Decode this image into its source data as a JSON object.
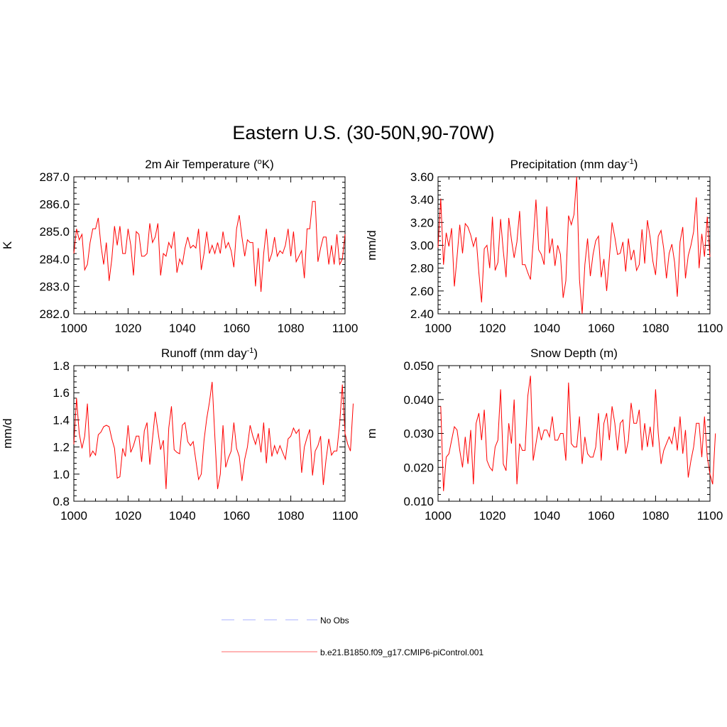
{
  "title": "Eastern U.S. (30-50N,90-70W)",
  "legend": {
    "items": [
      {
        "label": "No Obs",
        "color": "#aab0ff",
        "style": "dashed"
      },
      {
        "label": "b.e21.B1850.f09_g17.CMIP6-piControl.001",
        "color": "#ff6a6a",
        "style": "solid"
      }
    ]
  },
  "chart_data": [
    {
      "type": "line",
      "title": "2m Air Temperature (oK)",
      "title_main": "2m Air Temperature (",
      "title_sup": "o",
      "title_end": "K)",
      "ylabel": "K",
      "xlim": [
        1000,
        1100
      ],
      "ylim": [
        282.0,
        287.0
      ],
      "xticks": [
        1000,
        1020,
        1040,
        1060,
        1080,
        1100
      ],
      "xtick_labels": [
        "1000",
        "1020",
        "1040",
        "1060",
        "1080",
        "1100"
      ],
      "yticks": [
        282.0,
        283.0,
        284.0,
        285.0,
        286.0,
        287.0
      ],
      "ytick_labels": [
        "282.0",
        "283.0",
        "284.0",
        "285.0",
        "286.0",
        "287.0"
      ],
      "x_start": 1000,
      "x_step": 1,
      "series": [
        {
          "name": "b.e21.B1850.f09_g17.CMIP6-piControl.001",
          "color": "#ff0000",
          "values": [
            284.2,
            285.1,
            284.7,
            284.9,
            283.6,
            283.8,
            284.6,
            285.1,
            285.1,
            285.5,
            284.5,
            283.8,
            284.6,
            283.2,
            284.0,
            285.2,
            284.5,
            285.2,
            284.2,
            284.2,
            285.1,
            284.5,
            283.4,
            285.0,
            284.9,
            284.1,
            284.1,
            284.2,
            285.3,
            284.6,
            284.8,
            285.3,
            283.4,
            284.2,
            284.1,
            284.6,
            284.4,
            285.0,
            283.5,
            284.0,
            283.8,
            284.4,
            284.8,
            284.4,
            284.5,
            284.4,
            285.1,
            283.6,
            284.2,
            285.0,
            284.2,
            284.5,
            284.2,
            284.6,
            284.2,
            285.0,
            284.4,
            284.6,
            284.3,
            283.7,
            285.1,
            285.6,
            284.8,
            284.1,
            284.7,
            284.6,
            284.6,
            283.0,
            284.4,
            282.8,
            284.2,
            285.1,
            283.9,
            284.2,
            284.8,
            284.1,
            284.3,
            284.2,
            284.5,
            285.1,
            284.1,
            285.0,
            283.9,
            284.1,
            284.3,
            283.3,
            285.1,
            285.1,
            286.1,
            286.1,
            283.9,
            284.4,
            284.8,
            284.8,
            283.8,
            284.5,
            283.8,
            284.9,
            283.8,
            284.0,
            284.9
          ]
        }
      ]
    },
    {
      "type": "line",
      "title": "Precipitation (mm day-1)",
      "title_main": "Precipitation (mm day",
      "title_sup": "-1",
      "title_end": ")",
      "ylabel": "mm/d",
      "xlim": [
        1000,
        1100
      ],
      "ylim": [
        2.4,
        3.6
      ],
      "xticks": [
        1000,
        1020,
        1040,
        1060,
        1080,
        1100
      ],
      "xtick_labels": [
        "1000",
        "1020",
        "1040",
        "1060",
        "1080",
        "1100"
      ],
      "yticks": [
        2.4,
        2.6,
        2.8,
        3.0,
        3.2,
        3.4,
        3.6
      ],
      "ytick_labels": [
        "2.40",
        "2.60",
        "2.80",
        "3.00",
        "3.20",
        "3.40",
        "3.60"
      ],
      "x_start": 1000,
      "x_step": 1,
      "series": [
        {
          "name": "b.e21.B1850.f09_g17.CMIP6-piControl.001",
          "color": "#ff0000",
          "values": [
            2.98,
            3.41,
            2.83,
            3.11,
            2.99,
            3.15,
            2.64,
            2.9,
            3.18,
            2.93,
            3.19,
            3.16,
            3.09,
            2.99,
            3.07,
            2.76,
            2.5,
            2.97,
            3.0,
            2.8,
            3.25,
            2.78,
            2.85,
            3.23,
            2.95,
            2.72,
            3.24,
            3.05,
            2.89,
            3.03,
            3.3,
            2.83,
            2.83,
            2.76,
            2.7,
            3.03,
            3.4,
            2.96,
            2.92,
            2.83,
            3.34,
            2.93,
            3.06,
            2.82,
            3.0,
            2.92,
            2.54,
            2.69,
            3.26,
            3.18,
            3.27,
            3.6,
            2.7,
            2.4,
            2.83,
            3.06,
            2.73,
            2.92,
            3.04,
            3.08,
            2.72,
            2.88,
            2.6,
            2.89,
            3.2,
            3.07,
            2.92,
            2.93,
            3.03,
            2.77,
            3.06,
            2.87,
            2.96,
            2.78,
            2.83,
            3.14,
            2.84,
            3.22,
            3.07,
            2.86,
            2.74,
            3.08,
            3.13,
            2.97,
            2.71,
            2.93,
            3.01,
            2.85,
            2.55,
            3.03,
            3.16,
            2.71,
            2.91,
            3.0,
            3.12,
            3.42,
            2.8,
            3.1,
            2.9,
            3.25,
            2.9
          ]
        }
      ]
    },
    {
      "type": "line",
      "title": "Runoff (mm day-1)",
      "title_main": "Runoff (mm day",
      "title_sup": "-1",
      "title_end": ")",
      "ylabel": "mm/d",
      "xlim": [
        1000,
        1100
      ],
      "ylim": [
        0.8,
        1.8
      ],
      "xticks": [
        1000,
        1020,
        1040,
        1060,
        1080,
        1100
      ],
      "xtick_labels": [
        "1000",
        "1020",
        "1040",
        "1060",
        "1080",
        "1100"
      ],
      "yticks": [
        0.8,
        1.0,
        1.2,
        1.4,
        1.6,
        1.8
      ],
      "ytick_labels": [
        "0.8",
        "1.0",
        "1.2",
        "1.4",
        "1.6",
        "1.8"
      ],
      "x_start": 1000,
      "x_step": 1,
      "series": [
        {
          "name": "b.e21.B1850.f09_g17.CMIP6-piControl.001",
          "color": "#ff0000",
          "values": [
            1.22,
            1.56,
            1.3,
            1.19,
            1.28,
            1.52,
            1.13,
            1.17,
            1.14,
            1.29,
            1.31,
            1.35,
            1.36,
            1.35,
            1.26,
            1.19,
            0.97,
            0.98,
            1.19,
            1.13,
            1.36,
            1.16,
            1.21,
            1.28,
            1.28,
            1.09,
            1.32,
            1.38,
            1.07,
            1.26,
            1.46,
            1.32,
            1.18,
            1.25,
            0.89,
            1.34,
            1.5,
            1.18,
            1.16,
            1.15,
            1.36,
            1.38,
            1.24,
            1.21,
            1.24,
            1.1,
            0.96,
            1.0,
            1.25,
            1.41,
            1.53,
            1.68,
            1.28,
            0.89,
            1.0,
            1.36,
            1.05,
            1.12,
            1.17,
            1.38,
            1.19,
            1.13,
            0.95,
            1.11,
            1.2,
            1.36,
            1.28,
            1.22,
            1.3,
            1.16,
            1.38,
            1.08,
            1.34,
            1.13,
            1.21,
            1.15,
            1.21,
            1.16,
            1.11,
            1.26,
            1.28,
            1.34,
            1.3,
            1.33,
            1.01,
            1.2,
            1.27,
            1.33,
            0.99,
            1.17,
            1.21,
            1.28,
            0.92,
            1.11,
            1.26,
            1.14,
            1.17,
            1.17,
            1.37,
            1.66,
            1.3,
            1.22,
            1.17,
            1.52
          ]
        }
      ]
    },
    {
      "type": "line",
      "title": "Snow Depth (m)",
      "title_main": "Snow Depth (m)",
      "title_sup": "",
      "title_end": "",
      "ylabel": "m",
      "xlim": [
        1000,
        1100
      ],
      "ylim": [
        0.01,
        0.05
      ],
      "xticks": [
        1000,
        1020,
        1040,
        1060,
        1080,
        1100
      ],
      "xtick_labels": [
        "1000",
        "1020",
        "1040",
        "1060",
        "1080",
        "1100"
      ],
      "yticks": [
        0.01,
        0.02,
        0.03,
        0.04,
        0.05
      ],
      "ytick_labels": [
        "0.010",
        "0.020",
        "0.030",
        "0.040",
        "0.050"
      ],
      "x_start": 1001,
      "x_step": 1,
      "series": [
        {
          "name": "b.e21.B1850.f09_g17.CMIP6-piControl.001",
          "color": "#ff0000",
          "values": [
            0.038,
            0.013,
            0.023,
            0.024,
            0.028,
            0.032,
            0.031,
            0.025,
            0.02,
            0.029,
            0.021,
            0.031,
            0.015,
            0.033,
            0.036,
            0.028,
            0.037,
            0.022,
            0.02,
            0.019,
            0.026,
            0.028,
            0.043,
            0.021,
            0.019,
            0.033,
            0.027,
            0.04,
            0.015,
            0.027,
            0.025,
            0.025,
            0.041,
            0.047,
            0.022,
            0.027,
            0.032,
            0.028,
            0.031,
            0.031,
            0.029,
            0.035,
            0.028,
            0.028,
            0.03,
            0.03,
            0.022,
            0.045,
            0.027,
            0.026,
            0.026,
            0.035,
            0.021,
            0.029,
            0.024,
            0.023,
            0.023,
            0.026,
            0.036,
            0.022,
            0.033,
            0.036,
            0.028,
            0.038,
            0.033,
            0.025,
            0.033,
            0.034,
            0.024,
            0.028,
            0.039,
            0.033,
            0.033,
            0.037,
            0.025,
            0.033,
            0.026,
            0.032,
            0.026,
            0.043,
            0.03,
            0.021,
            0.025,
            0.027,
            0.029,
            0.027,
            0.032,
            0.025,
            0.035,
            0.024,
            0.031,
            0.017,
            0.022,
            0.026,
            0.033,
            0.033,
            0.023,
            0.035,
            0.023,
            0.018,
            0.015,
            0.03
          ]
        }
      ]
    }
  ]
}
